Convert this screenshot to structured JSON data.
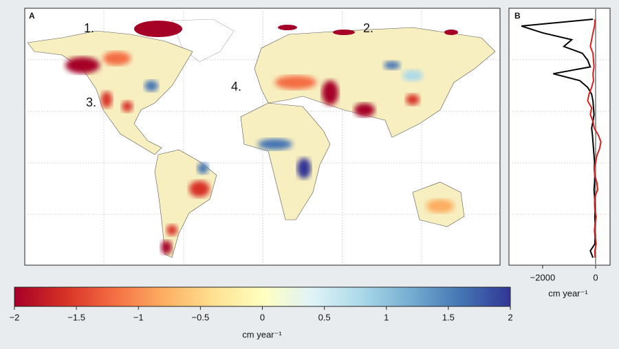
{
  "map": {
    "panel_label": "A",
    "annotations": [
      "1.",
      "2.",
      "3.",
      "4."
    ]
  },
  "chart_data": [
    {
      "type": "line",
      "title": "B",
      "xlabel": "cm year⁻¹",
      "xlim": [
        -3270,
        545
      ],
      "xticks": [
        {
          "value": -2000,
          "label": "−2000"
        },
        0
      ],
      "series": [
        {
          "name": "black",
          "color": "#000000",
          "values": [
            -100,
            -2800,
            -2000,
            -900,
            -1200,
            -500,
            -300,
            -200,
            -1600,
            -600,
            -300,
            -150,
            -100,
            -80,
            -60,
            -100,
            -150,
            -120,
            -100,
            -80,
            -60,
            -40,
            -50,
            -30,
            -40,
            -60,
            -40,
            -30,
            -20,
            -30,
            -20,
            -40,
            -20,
            -30,
            -200,
            -100
          ]
        },
        {
          "name": "red",
          "color": "#d62020",
          "values": [
            -20,
            -40,
            -100,
            -150,
            -200,
            -100,
            -80,
            -60,
            -100,
            -80,
            -150,
            -250,
            -300,
            -150,
            -200,
            -100,
            -50,
            100,
            200,
            150,
            50,
            0,
            -50,
            -30,
            50,
            80,
            -20,
            -40,
            -30,
            20,
            -20,
            -30,
            -10,
            20,
            -30,
            -20
          ]
        }
      ]
    },
    {
      "type": "colorbar",
      "xlabel": "cm year⁻¹",
      "xlim": [
        -2,
        2
      ],
      "colors": [
        "#a50026",
        "#d73027",
        "#f46d43",
        "#fdae61",
        "#fee090",
        "#ffffbf",
        "#e0f3f8",
        "#abd9e9",
        "#74add1",
        "#4575b4",
        "#313695"
      ],
      "xticks": [
        {
          "value": -2,
          "label": "−2"
        },
        {
          "value": -1.5,
          "label": "−1.5"
        },
        {
          "value": -1,
          "label": "−1"
        },
        {
          "value": -0.5,
          "label": "−0.5"
        },
        0,
        0.5,
        1,
        1.5,
        2
      ]
    }
  ]
}
